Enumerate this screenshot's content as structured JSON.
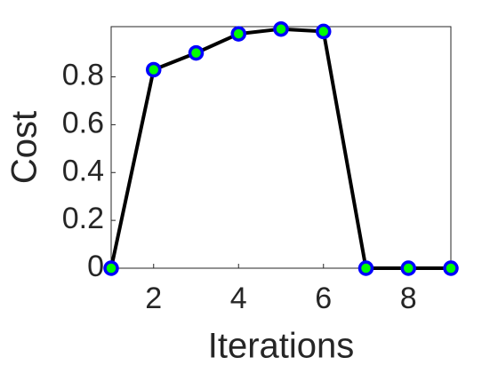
{
  "chart_data": {
    "type": "line",
    "x_label": "Iterations",
    "y_label": "Cost",
    "x": [
      1,
      2,
      3,
      4,
      5,
      6,
      7,
      8,
      9
    ],
    "series": [
      {
        "color": "#000000",
        "marker_edge": "#0000ff",
        "marker_face": "#00ff00",
        "values": [
          0,
          0.83,
          0.9,
          0.98,
          1.0,
          0.99,
          0,
          0,
          0
        ]
      }
    ],
    "xlim": [
      1,
      9
    ],
    "xticks": [
      2,
      4,
      6,
      8
    ],
    "ylim": [
      0,
      1.01
    ],
    "yticks": [
      0,
      0.2,
      0.4,
      0.6,
      0.8
    ]
  }
}
